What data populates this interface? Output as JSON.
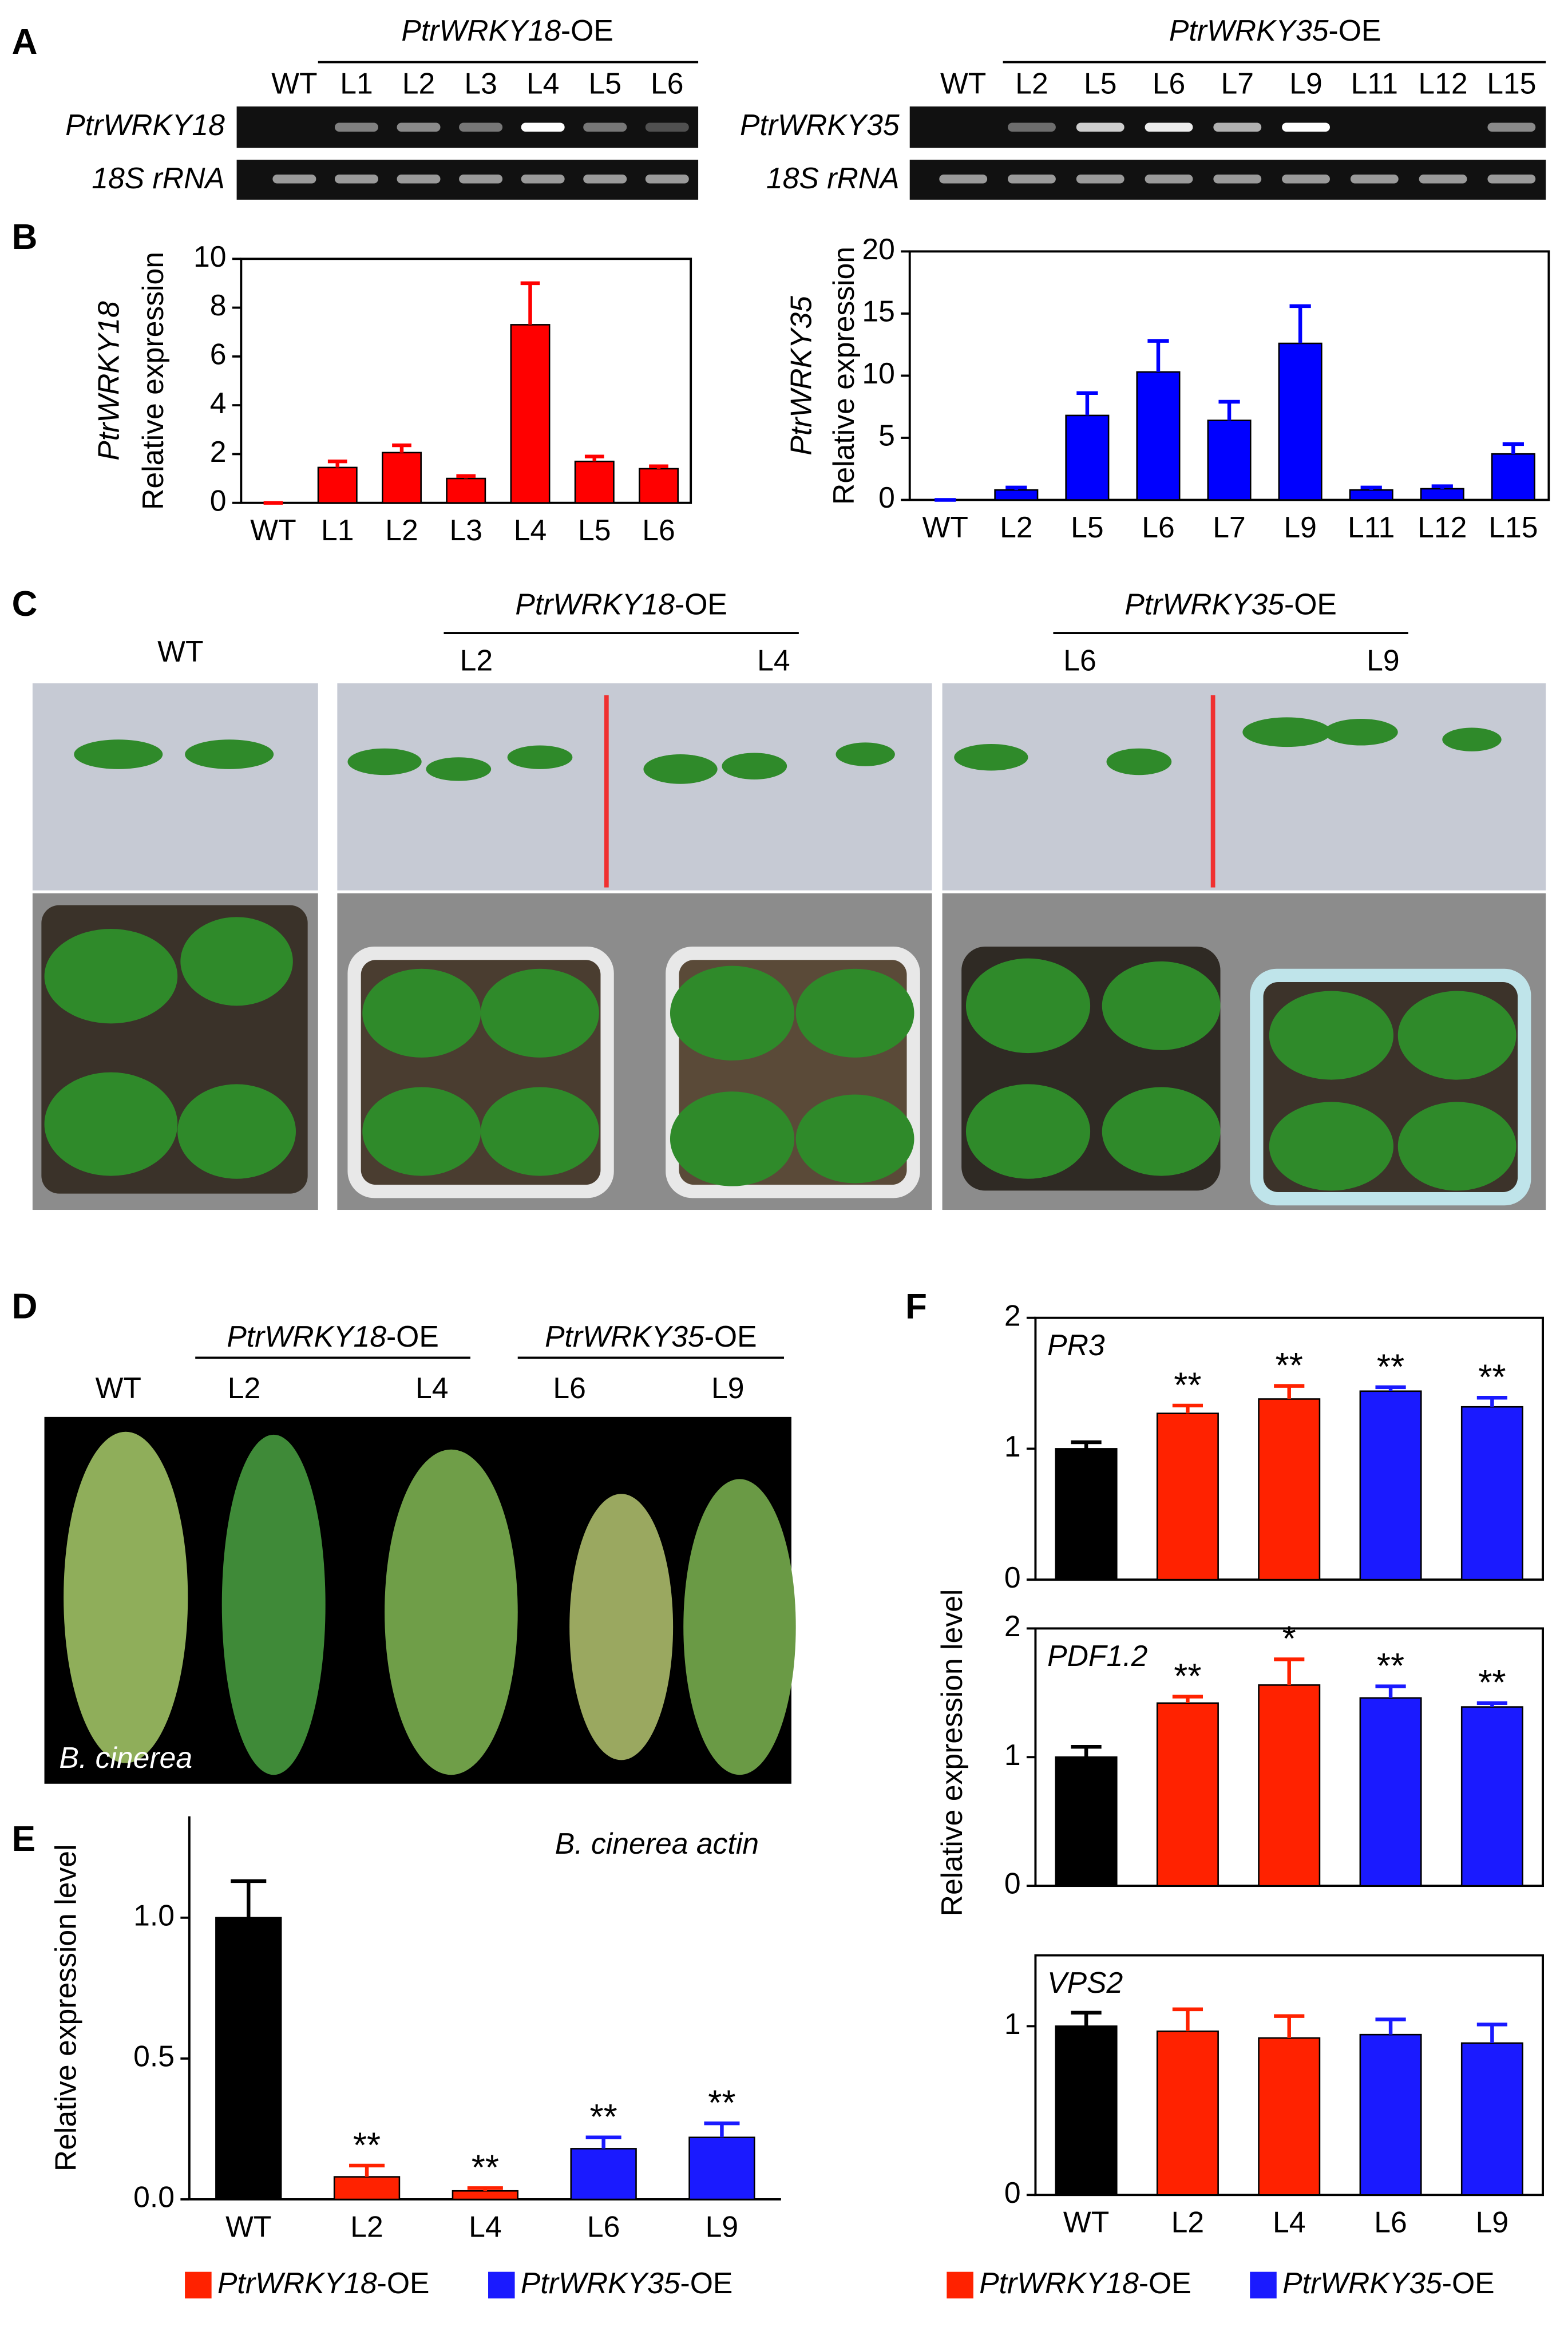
{
  "panels": {
    "a": "A",
    "b": "B",
    "c": "C",
    "d": "D",
    "e": "E",
    "f": "F"
  },
  "gel": {
    "left": {
      "header": "PtrWRKY18-OE",
      "lanes": [
        "WT",
        "L1",
        "L2",
        "L3",
        "L4",
        "L5",
        "L6"
      ],
      "rows": [
        "PtrWRKY18",
        "18S rRNA"
      ]
    },
    "right": {
      "header": "PtrWRKY35-OE",
      "lanes": [
        "WT",
        "L2",
        "L5",
        "L6",
        "L7",
        "L9",
        "L11",
        "L12",
        "L15"
      ],
      "rows": [
        "PtrWRKY35",
        "18S rRNA"
      ]
    }
  },
  "seedlings": {
    "wt": "WT",
    "group1": {
      "header": "PtrWRKY18-OE",
      "lines": [
        "L2",
        "L4"
      ]
    },
    "group2": {
      "header": "PtrWRKY35-OE",
      "lines": [
        "L6",
        "L9"
      ]
    }
  },
  "leaves": {
    "wt": "WT",
    "group1": {
      "header": "PtrWRKY18-OE",
      "lines": [
        "L2",
        "L4"
      ]
    },
    "group2": {
      "header": "PtrWRKY35-OE",
      "lines": [
        "L6",
        "L9"
      ]
    },
    "pathogen": "B. cinerea"
  },
  "chart_data": [
    {
      "type": "bar",
      "gene": "PtrWRKY18",
      "ylabel": "Relative expression",
      "frame": true,
      "categories": [
        "WT",
        "L1",
        "L2",
        "L3",
        "L4",
        "L5",
        "L6"
      ],
      "values": [
        0,
        1.45,
        2.06,
        1.0,
        7.3,
        1.7,
        1.4
      ],
      "errors": [
        0,
        0.25,
        0.3,
        0.1,
        1.7,
        0.2,
        0.1
      ],
      "color": "#ff0000",
      "ylim": [
        0,
        10
      ],
      "yticks": [
        0,
        2,
        4,
        6,
        8,
        10
      ]
    },
    {
      "type": "bar",
      "gene": "PtrWRKY35",
      "ylabel": "Relative expression",
      "frame": true,
      "categories": [
        "WT",
        "L2",
        "L5",
        "L6",
        "L7",
        "L9",
        "L11",
        "L12",
        "L15"
      ],
      "values": [
        0,
        0.8,
        6.8,
        10.3,
        6.4,
        12.6,
        0.8,
        0.9,
        3.7
      ],
      "errors": [
        0,
        0.2,
        1.8,
        2.5,
        1.5,
        3.0,
        0.2,
        0.2,
        0.8
      ],
      "color": "#0000ff",
      "ylim": [
        0,
        20
      ],
      "yticks": [
        0,
        5,
        10,
        15,
        20
      ]
    },
    {
      "type": "bar",
      "title": "B. cinerea actin",
      "ylabel": "Relative expression  level",
      "frame": false,
      "categories": [
        "WT",
        "L2",
        "L4",
        "L6",
        "L9"
      ],
      "values": [
        1.0,
        0.08,
        0.03,
        0.18,
        0.22
      ],
      "errors": [
        0.13,
        0.04,
        0.01,
        0.04,
        0.05
      ],
      "colors": [
        "#000000",
        "#ff2200",
        "#ff2200",
        "#1a1aff",
        "#1a1aff"
      ],
      "annotations": [
        null,
        "**",
        "**",
        "**",
        "**"
      ],
      "legend": [
        {
          "name": "PtrWRKY18-OE",
          "color": "#ff2200"
        },
        {
          "name": "PtrWRKY35-OE",
          "color": "#1a1aff"
        }
      ],
      "ylim": [
        0,
        1.36
      ],
      "yticks": [
        {
          "value": 0,
          "label": "0.0"
        },
        0.5,
        {
          "value": 1,
          "label": "1.0"
        }
      ]
    },
    {
      "type": "bar",
      "title": "PR3",
      "frame": true,
      "values": [
        1.0,
        1.27,
        1.38,
        1.44,
        1.32
      ],
      "errors": [
        0.05,
        0.06,
        0.1,
        0.03,
        0.07
      ],
      "colors": [
        "#000000",
        "#ff2200",
        "#ff2200",
        "#1a1aff",
        "#1a1aff"
      ],
      "annotations": [
        null,
        "**",
        "**",
        "**",
        "**"
      ],
      "ylim": [
        0,
        2
      ],
      "yticks": [
        0,
        1,
        2
      ]
    },
    {
      "type": "bar",
      "title": "PDF1.2",
      "ylabel": "Relative expression level",
      "frame": true,
      "values": [
        1.0,
        1.42,
        1.56,
        1.46,
        1.39
      ],
      "errors": [
        0.08,
        0.05,
        0.2,
        0.09,
        0.03
      ],
      "colors": [
        "#000000",
        "#ff2200",
        "#ff2200",
        "#1a1aff",
        "#1a1aff"
      ],
      "annotations": [
        null,
        "**",
        "*",
        "**",
        "**"
      ],
      "ylim": [
        0,
        2
      ],
      "yticks": [
        0,
        1,
        2
      ]
    },
    {
      "type": "bar",
      "title": "VPS2",
      "frame": true,
      "categories": [
        "WT",
        "L2",
        "L4",
        "L6",
        "L9"
      ],
      "values": [
        1.0,
        0.97,
        0.93,
        0.95,
        0.9
      ],
      "errors": [
        0.08,
        0.13,
        0.13,
        0.09,
        0.11
      ],
      "colors": [
        "#000000",
        "#ff2200",
        "#ff2200",
        "#1a1aff",
        "#1a1aff"
      ],
      "legend": [
        {
          "name": "PtrWRKY18-OE",
          "color": "#ff2200"
        },
        {
          "name": "PtrWRKY35-OE",
          "color": "#1a1aff"
        }
      ],
      "ylim": [
        0,
        1.42
      ],
      "yticks": [
        0,
        1
      ]
    }
  ]
}
